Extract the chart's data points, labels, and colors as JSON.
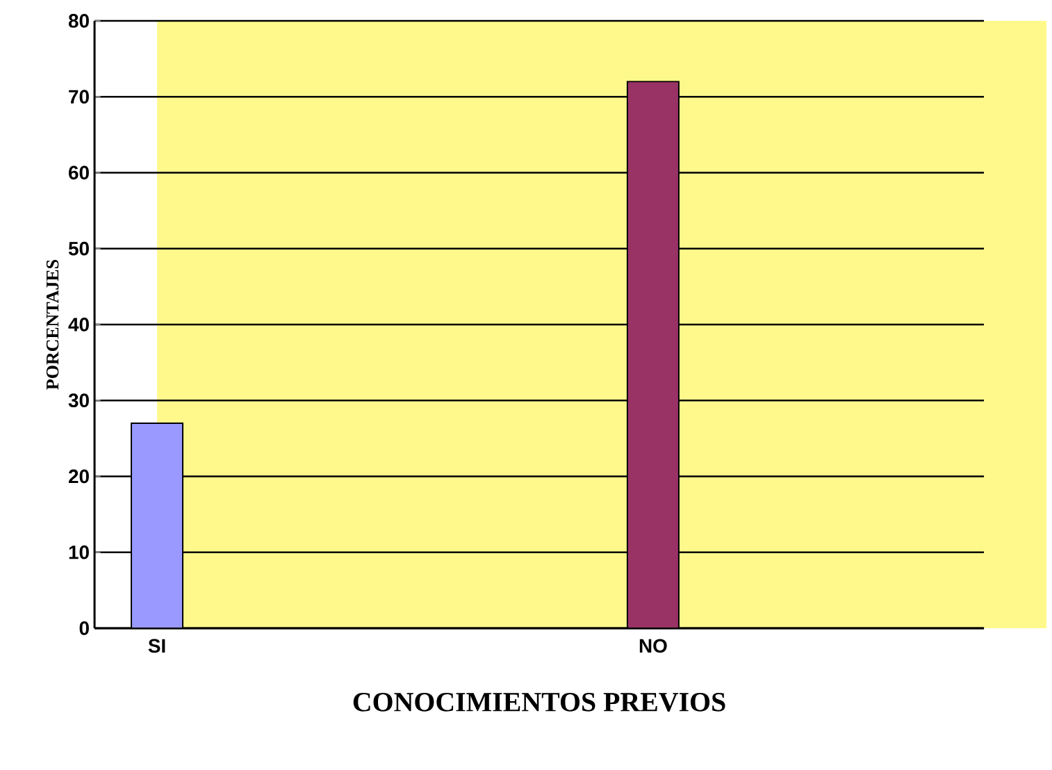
{
  "chart_data": {
    "type": "bar",
    "categories": [
      "SI",
      "NO"
    ],
    "values": [
      27,
      72
    ],
    "colors": [
      "#9999ff",
      "#993366"
    ],
    "xlabel": "CONOCIMIENTOS PREVIOS",
    "ylabel": "PORCENTAJES",
    "ylim": [
      0,
      80
    ],
    "yticks": [
      0,
      10,
      20,
      30,
      40,
      50,
      60,
      70,
      80
    ],
    "grid": "y"
  }
}
